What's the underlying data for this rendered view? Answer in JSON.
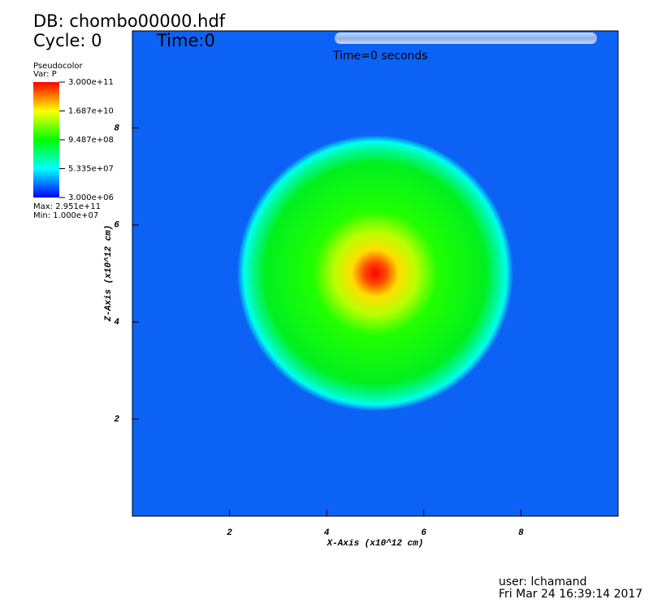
{
  "chart_data": {
    "type": "pseudocolor",
    "title": "DB: chombo00000.hdf",
    "cycle": "Cycle: 0",
    "time": "Time:0",
    "time_slider": "Time=0 seconds",
    "legend": {
      "title": "Pseudocolor",
      "variable": "Var: P",
      "labels": [
        "3.000e+11",
        "1.687e+10",
        "9.487e+08",
        "5.335e+07",
        "3.000e+06"
      ],
      "max": "Max:  2.951e+11",
      "min": "Min:  1.000e+07"
    },
    "xlabel": "X-Axis (x10^12 cm)",
    "ylabel": "Z-Axis (x10^12 cm)",
    "xlim": [
      0,
      10
    ],
    "ylim": [
      0,
      10
    ],
    "xticks": [
      2,
      4,
      6,
      8
    ],
    "yticks": [
      2,
      4,
      6,
      8
    ],
    "user": "user: lchamand",
    "date": "Fri Mar 24 16:39:14 2017"
  }
}
